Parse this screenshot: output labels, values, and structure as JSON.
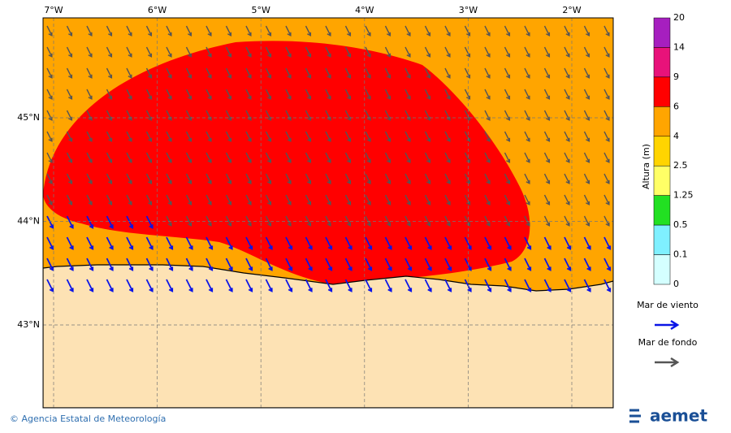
{
  "map": {
    "lon_labels": [
      "7°W",
      "6°W",
      "5°W",
      "4°W",
      "3°W",
      "2°W"
    ],
    "lat_labels": [
      "45°N",
      "44°N",
      "43°N"
    ]
  },
  "colorbar": {
    "label": "Altura (m)",
    "ticks": [
      "20",
      "14",
      "9",
      "6",
      "4",
      "2.5",
      "1.25",
      "0.5",
      "0.1",
      "0"
    ],
    "colors": [
      "#a61fbf",
      "#e8127a",
      "#ff0000",
      "#ffa500",
      "#ffd400",
      "#ffff66",
      "#22e022",
      "#7ff0ff",
      "#d4ffff"
    ]
  },
  "legend": {
    "items": [
      {
        "label": "Mar de viento",
        "color": "#0a14e6"
      },
      {
        "label": "Mar de fondo",
        "color": "#555555"
      }
    ]
  },
  "footer": {
    "credit": "© Agencia Estatal de Meteorología",
    "logo": "aemet"
  }
}
